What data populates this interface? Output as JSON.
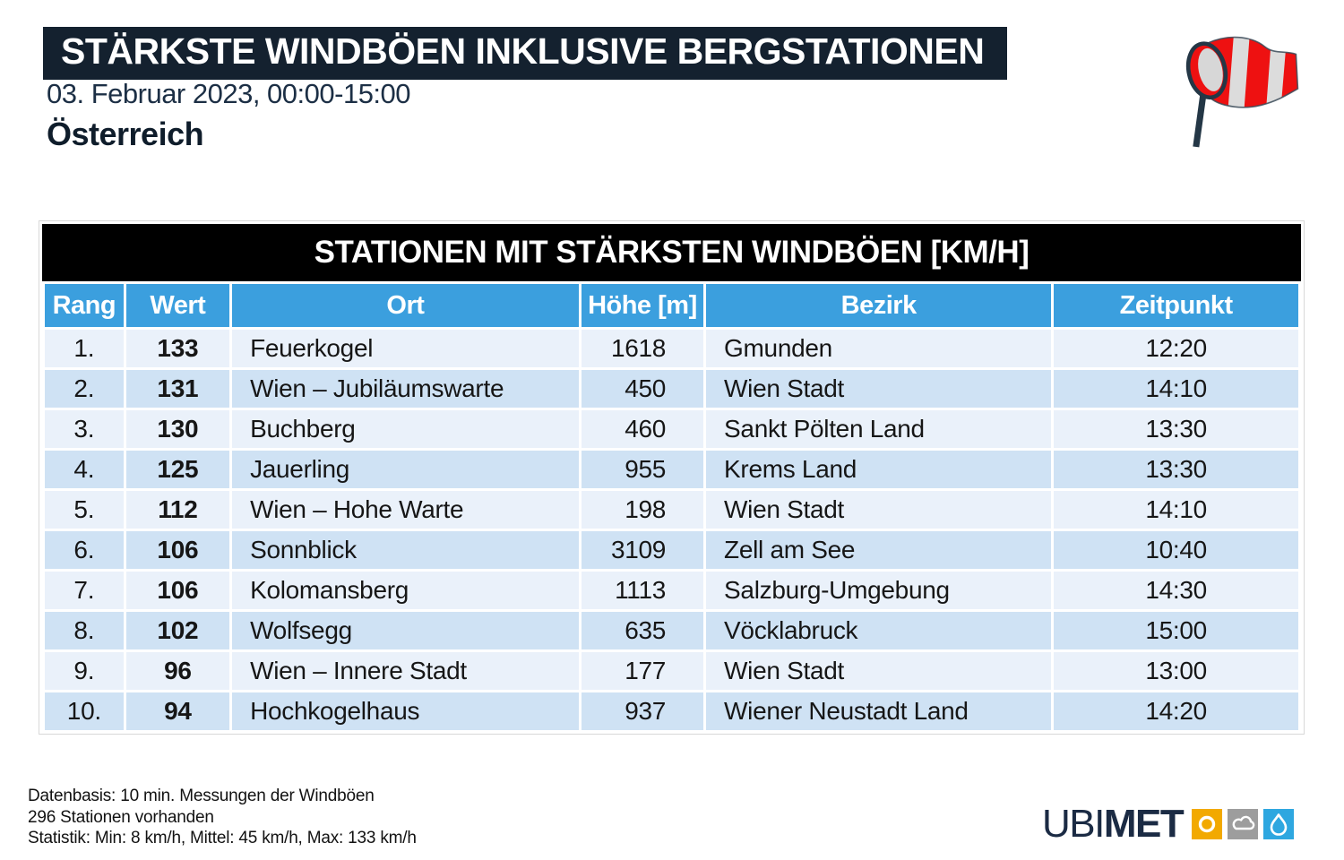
{
  "header": {
    "title": "STÄRKSTE WINDBÖEN INKLUSIVE BERGSTATIONEN",
    "date_range": "03. Februar 2023, 00:00-15:00",
    "region": "Österreich"
  },
  "table": {
    "title": "STATIONEN MIT STÄRKSTEN WINDBÖEN [KM/H]",
    "columns": [
      "Rang",
      "Wert",
      "Ort",
      "Höhe [m]",
      "Bezirk",
      "Zeitpunkt"
    ],
    "rows": [
      {
        "rang": "1.",
        "wert": "133",
        "ort": "Feuerkogel",
        "hoehe": "1618",
        "bezirk": "Gmunden",
        "zeitpunkt": "12:20"
      },
      {
        "rang": "2.",
        "wert": "131",
        "ort": "Wien – Jubiläumswarte",
        "hoehe": "450",
        "bezirk": "Wien Stadt",
        "zeitpunkt": "14:10"
      },
      {
        "rang": "3.",
        "wert": "130",
        "ort": "Buchberg",
        "hoehe": "460",
        "bezirk": "Sankt Pölten Land",
        "zeitpunkt": "13:30"
      },
      {
        "rang": "4.",
        "wert": "125",
        "ort": "Jauerling",
        "hoehe": "955",
        "bezirk": "Krems Land",
        "zeitpunkt": "13:30"
      },
      {
        "rang": "5.",
        "wert": "112",
        "ort": "Wien – Hohe Warte",
        "hoehe": "198",
        "bezirk": "Wien Stadt",
        "zeitpunkt": "14:10"
      },
      {
        "rang": "6.",
        "wert": "106",
        "ort": "Sonnblick",
        "hoehe": "3109",
        "bezirk": "Zell am See",
        "zeitpunkt": "10:40"
      },
      {
        "rang": "7.",
        "wert": "106",
        "ort": "Kolomansberg",
        "hoehe": "1113",
        "bezirk": "Salzburg-Umgebung",
        "zeitpunkt": "14:30"
      },
      {
        "rang": "8.",
        "wert": "102",
        "ort": "Wolfsegg",
        "hoehe": "635",
        "bezirk": "Vöcklabruck",
        "zeitpunkt": "15:00"
      },
      {
        "rang": "9.",
        "wert": "96",
        "ort": "Wien – Innere Stadt",
        "hoehe": "177",
        "bezirk": "Wien Stadt",
        "zeitpunkt": "13:00"
      },
      {
        "rang": "10.",
        "wert": "94",
        "ort": "Hochkogelhaus",
        "hoehe": "937",
        "bezirk": "Wiener Neustadt Land",
        "zeitpunkt": "14:20"
      }
    ]
  },
  "footer": {
    "lines": [
      "Datenbasis: 10 min. Messungen der Windböen",
      "296 Stationen vorhanden",
      "Statistik: Min: 8 km/h, Mittel: 45 km/h, Max: 133 km/h"
    ]
  },
  "branding": {
    "logo_part1": "UBI",
    "logo_part2": "MET",
    "icons": [
      "windsock-icon",
      "sun-icon",
      "cloud-icon",
      "droplet-icon"
    ]
  },
  "colors": {
    "banner_bg": "#14212F",
    "table_title_bg": "#000000",
    "table_header_blue": "#3B9FDE",
    "row_light": "#EAF1FA",
    "row_dark": "#CFE2F4",
    "logo_navy": "#1B2B44",
    "icon_yellow": "#F2A900",
    "icon_gray": "#9D9D9D",
    "icon_blue": "#2EA7E0",
    "windsock_red": "#EE1111",
    "windsock_pole": "#243746"
  },
  "chart_data": {
    "type": "table",
    "title": "STATIONEN MIT STÄRKSTEN WINDBÖEN [KM/H]",
    "subtitle": "STÄRKSTE WINDBÖEN INKLUSIVE BERGSTATIONEN — 03. Februar 2023, 00:00-15:00 — Österreich",
    "columns": [
      "Rang",
      "Wert",
      "Ort",
      "Höhe [m]",
      "Bezirk",
      "Zeitpunkt"
    ],
    "rows": [
      [
        "1.",
        133,
        "Feuerkogel",
        1618,
        "Gmunden",
        "12:20"
      ],
      [
        "2.",
        131,
        "Wien – Jubiläumswarte",
        450,
        "Wien Stadt",
        "14:10"
      ],
      [
        "3.",
        130,
        "Buchberg",
        460,
        "Sankt Pölten Land",
        "13:30"
      ],
      [
        "4.",
        125,
        "Jauerling",
        955,
        "Krems Land",
        "13:30"
      ],
      [
        "5.",
        112,
        "Wien – Hohe Warte",
        198,
        "Wien Stadt",
        "14:10"
      ],
      [
        "6.",
        106,
        "Sonnblick",
        3109,
        "Zell am See",
        "10:40"
      ],
      [
        "7.",
        106,
        "Kolomansberg",
        1113,
        "Salzburg-Umgebung",
        "14:30"
      ],
      [
        "8.",
        102,
        "Wolfsegg",
        635,
        "Vöcklabruck",
        "15:00"
      ],
      [
        "9.",
        96,
        "Wien – Innere Stadt",
        177,
        "Wien Stadt",
        "13:00"
      ],
      [
        "10.",
        94,
        "Hochkogelhaus",
        937,
        "Wiener Neustadt Land",
        "14:20"
      ]
    ],
    "stats": {
      "min_kmh": 8,
      "mittel_kmh": 45,
      "max_kmh": 133,
      "stationen": 296
    }
  }
}
